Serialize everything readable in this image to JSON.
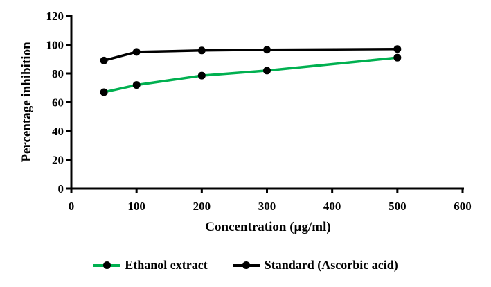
{
  "chart_data": {
    "type": "line",
    "title": "",
    "xlabel": "Concentration (µg/ml)",
    "ylabel": "Percentage inhibition",
    "xlim": [
      0,
      600
    ],
    "ylim": [
      0,
      120
    ],
    "x_ticks": [
      0,
      100,
      200,
      300,
      400,
      500,
      600
    ],
    "y_ticks": [
      0,
      20,
      40,
      60,
      80,
      100,
      120
    ],
    "grid": false,
    "legend_position": "bottom",
    "background_color": "#ffffff",
    "axis_color": "#000000",
    "x": [
      50,
      100,
      200,
      300,
      500
    ],
    "series": [
      {
        "name": "Ethanol extract",
        "color": "#00B050",
        "marker": "circle",
        "marker_color": "#000000",
        "values": [
          67,
          72,
          78.5,
          82,
          91
        ]
      },
      {
        "name": "Standard (Ascorbic acid)",
        "color": "#000000",
        "marker": "circle",
        "marker_color": "#000000",
        "values": [
          89,
          95,
          96,
          96.5,
          97
        ]
      }
    ]
  }
}
